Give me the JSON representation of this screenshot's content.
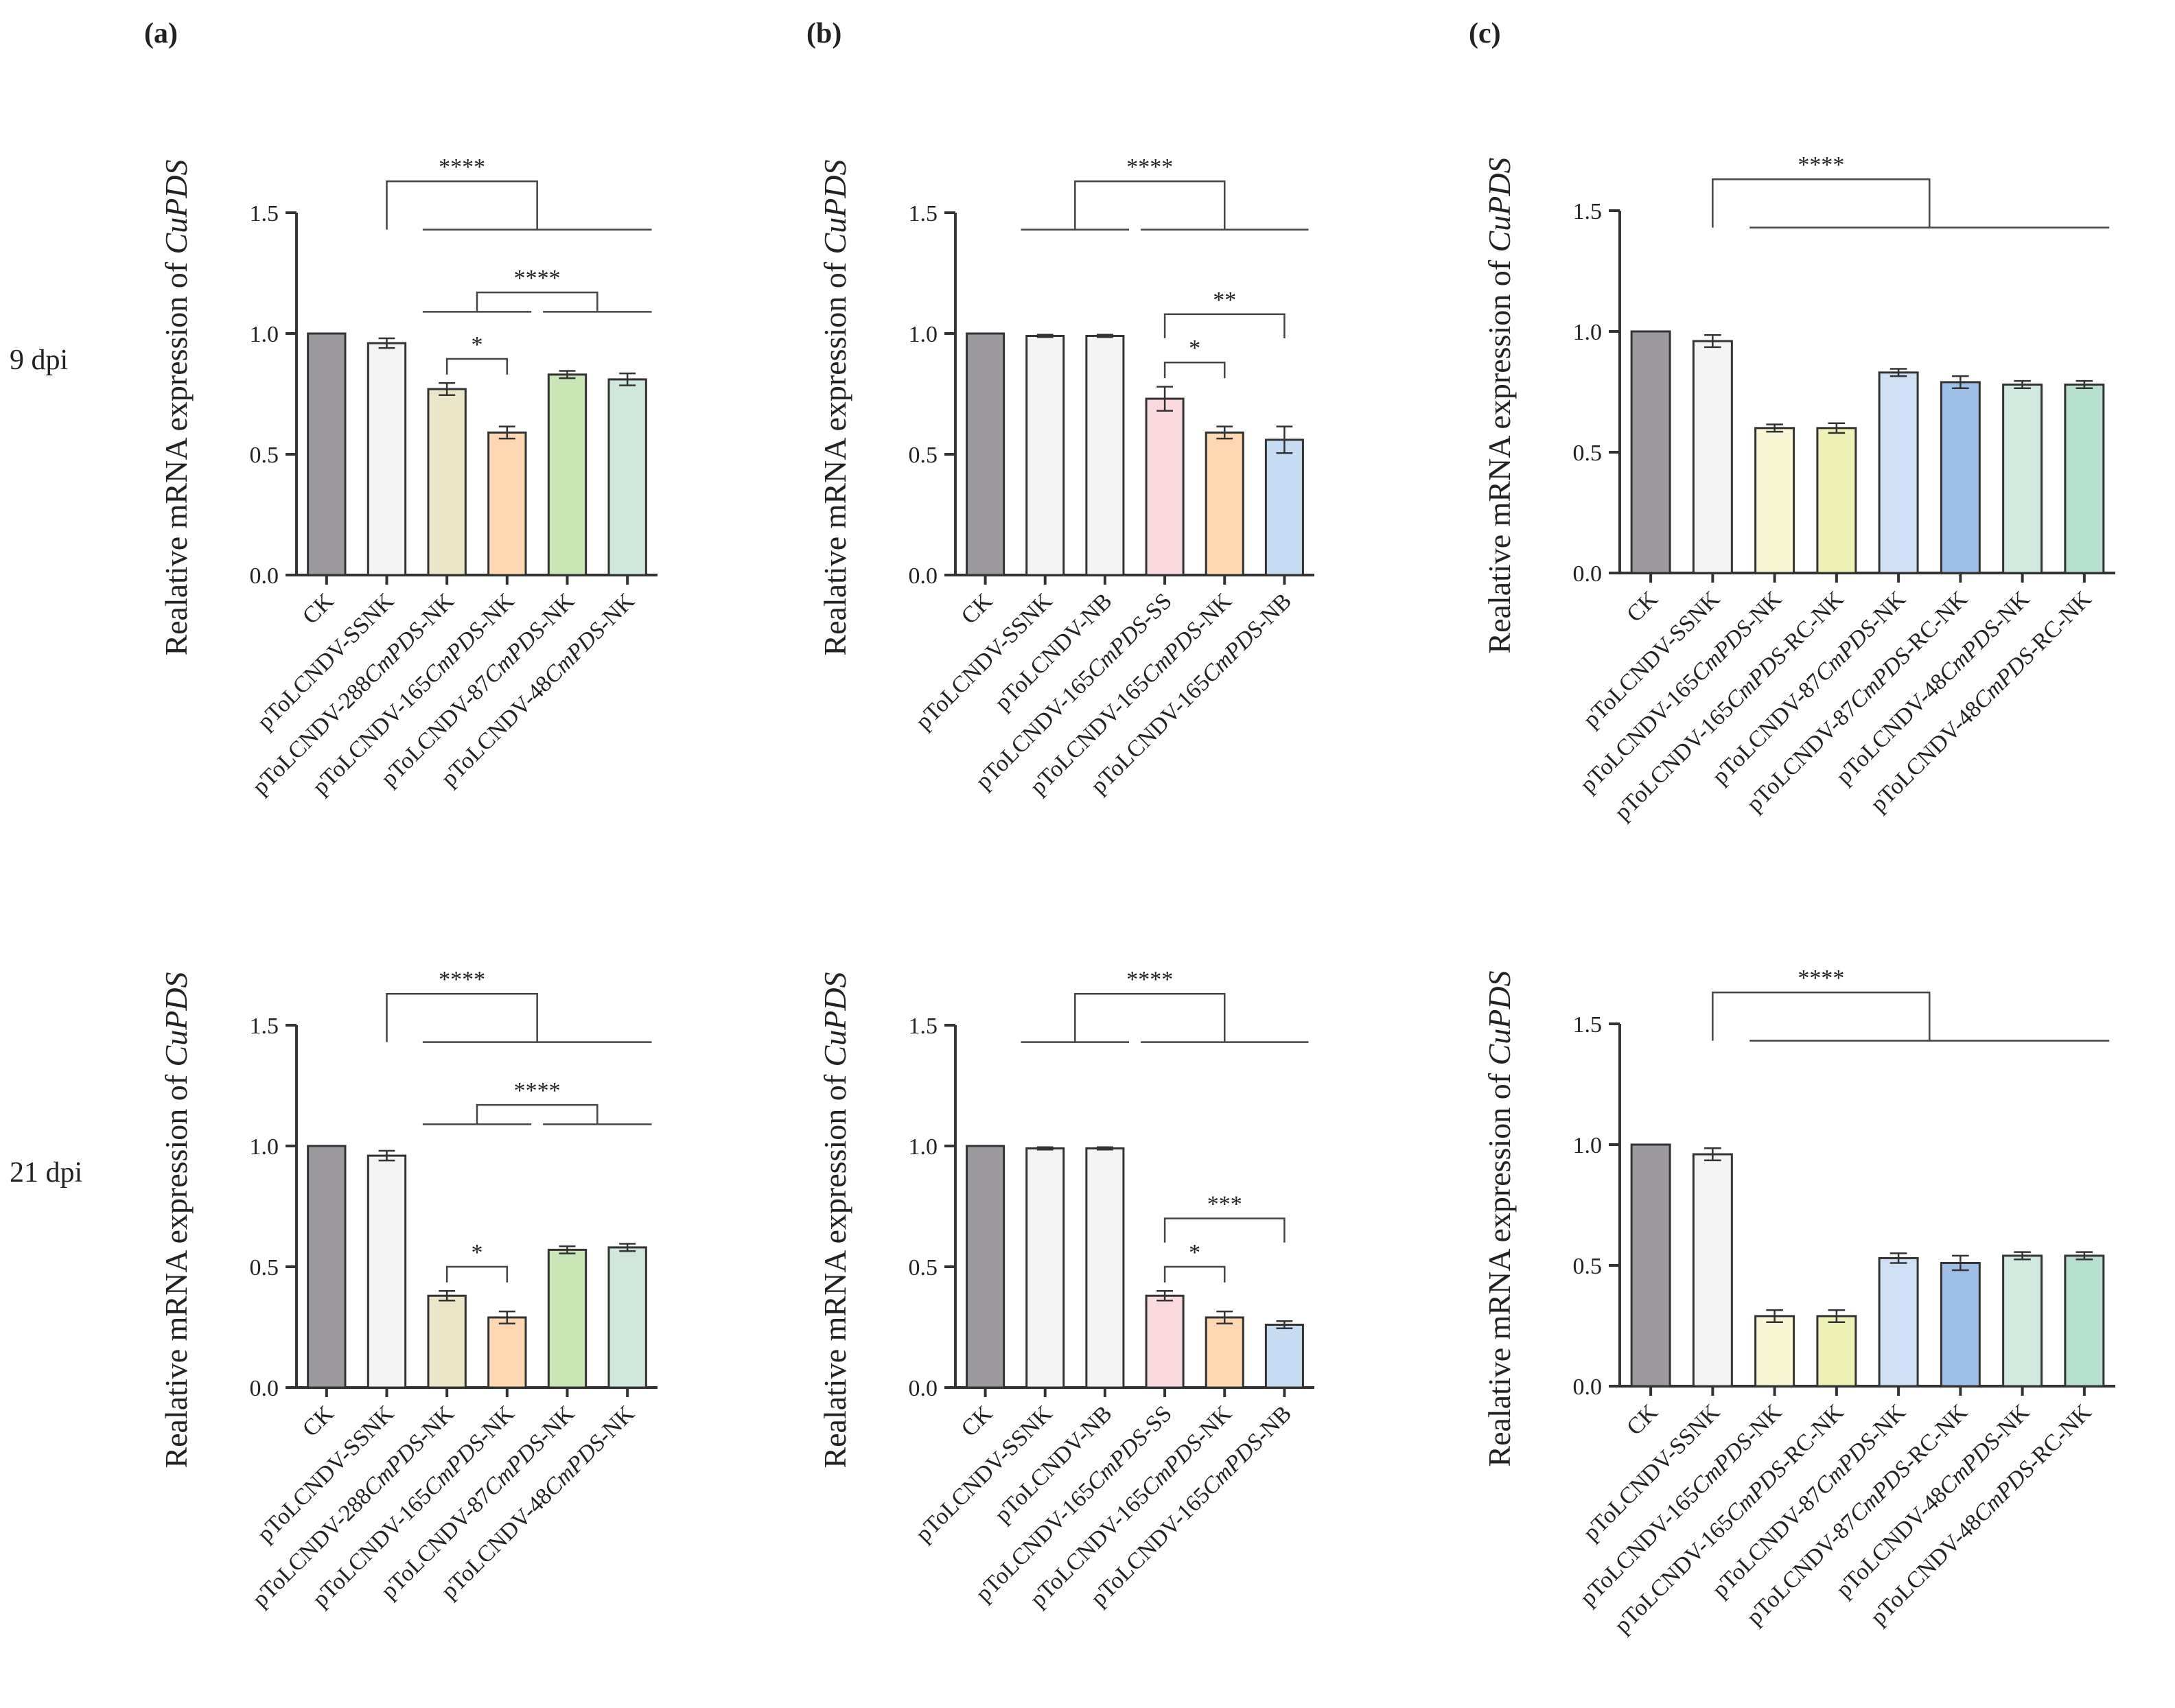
{
  "panel_labels": [
    "(a)",
    "(b)",
    "(c)"
  ],
  "row_labels": [
    "9 dpi",
    "21 dpi"
  ],
  "ylabel_prefix": "Realative mRNA expression of ",
  "ylabel_gene": "CuPDS",
  "yticks": [
    "0.0",
    "0.5",
    "1.0",
    "1.5"
  ],
  "chart_data": [
    {
      "id": "a-9dpi",
      "type": "bar",
      "panel": "(a)",
      "row": "9 dpi",
      "ylabel": "Realative mRNA expression of CuPDS",
      "ylim": [
        0,
        1.5
      ],
      "categories": [
        "CK",
        "pToLCNDV-SSNK",
        "pToLCNDV-288CmPDS-NK",
        "pToLCNDV-165CmPDS-NK",
        "pToLCNDV-87CmPDS-NK",
        "pToLCNDV-48CmPDS-NK"
      ],
      "values": [
        1.0,
        0.96,
        0.77,
        0.59,
        0.83,
        0.81
      ],
      "errors": [
        0.0,
        0.02,
        0.025,
        0.025,
        0.015,
        0.025
      ],
      "colors": [
        "#9c9a9f",
        "#f4f4f4",
        "#ece6c8",
        "#fdd8b3",
        "#c9e6b5",
        "#cfe8db"
      ],
      "significance": [
        {
          "label": "****",
          "kind": "group",
          "left": [
            1,
            1
          ],
          "right": [
            2,
            5
          ]
        },
        {
          "label": "****",
          "kind": "group",
          "left": [
            2,
            3
          ],
          "right": [
            4,
            5
          ]
        },
        {
          "label": "*",
          "kind": "pair",
          "left": [
            2,
            2
          ],
          "right": [
            3,
            3
          ]
        }
      ]
    },
    {
      "id": "b-9dpi",
      "type": "bar",
      "panel": "(b)",
      "row": "9 dpi",
      "ylabel": "Realative mRNA expression of CuPDS",
      "ylim": [
        0,
        1.5
      ],
      "categories": [
        "CK",
        "pToLCNDV-SSNK",
        "pToLCNDV-NB",
        "pToLCNDV-165CmPDS-SS",
        "pToLCNDV-165CmPDS-NK",
        "pToLCNDV-165CmPDS-NB"
      ],
      "values": [
        1.0,
        0.99,
        0.99,
        0.73,
        0.59,
        0.56
      ],
      "errors": [
        0.0,
        0.005,
        0.005,
        0.05,
        0.025,
        0.055
      ],
      "colors": [
        "#9c9a9f",
        "#f4f4f4",
        "#f4f4f4",
        "#fadadf",
        "#fdd8b3",
        "#c6dcf3"
      ],
      "significance": [
        {
          "label": "****",
          "kind": "group",
          "left": [
            1,
            2
          ],
          "right": [
            3,
            5
          ]
        },
        {
          "label": "**",
          "kind": "pair",
          "left": [
            3,
            3
          ],
          "right": [
            5,
            5
          ]
        },
        {
          "label": "*",
          "kind": "pair",
          "left": [
            3,
            3
          ],
          "right": [
            4,
            4
          ]
        }
      ]
    },
    {
      "id": "c-9dpi",
      "type": "bar",
      "panel": "(c)",
      "row": "9 dpi",
      "ylabel": "Realative mRNA expression of CuPDS",
      "ylim": [
        0,
        1.5
      ],
      "categories": [
        "CK",
        "pToLCNDV-SSNK",
        "pToLCNDV-165CmPDS-NK",
        "pToLCNDV-165CmPDS-RC-NK",
        "pToLCNDV-87CmPDS-NK",
        "pToLCNDV-87CmPDS-RC-NK",
        "pToLCNDV-48CmPDS-NK",
        "pToLCNDV-48CmPDS-RC-NK"
      ],
      "values": [
        1.0,
        0.96,
        0.6,
        0.6,
        0.83,
        0.79,
        0.78,
        0.78
      ],
      "errors": [
        0.0,
        0.025,
        0.015,
        0.02,
        0.015,
        0.025,
        0.015,
        0.015
      ],
      "colors": [
        "#9c9a9f",
        "#f4f4f4",
        "#f8f6d4",
        "#eef1b5",
        "#cfe0f5",
        "#9ebfe6",
        "#d2ebe0",
        "#b7e0cf"
      ],
      "significance": [
        {
          "label": "****",
          "kind": "group",
          "left": [
            1,
            1
          ],
          "right": [
            2,
            7
          ]
        }
      ]
    },
    {
      "id": "a-21dpi",
      "type": "bar",
      "panel": "(a)",
      "row": "21 dpi",
      "ylabel": "Realative mRNA expression of CuPDS",
      "ylim": [
        0,
        1.5
      ],
      "categories": [
        "CK",
        "pToLCNDV-SSNK",
        "pToLCNDV-288CmPDS-NK",
        "pToLCNDV-165CmPDS-NK",
        "pToLCNDV-87CmPDS-NK",
        "pToLCNDV-48CmPDS-NK"
      ],
      "values": [
        1.0,
        0.96,
        0.38,
        0.29,
        0.57,
        0.58
      ],
      "errors": [
        0.0,
        0.02,
        0.02,
        0.025,
        0.015,
        0.015
      ],
      "colors": [
        "#9c9a9f",
        "#f4f4f4",
        "#ece6c8",
        "#fdd8b3",
        "#c9e6b5",
        "#cfe8db"
      ],
      "significance": [
        {
          "label": "****",
          "kind": "group",
          "left": [
            1,
            1
          ],
          "right": [
            2,
            5
          ]
        },
        {
          "label": "****",
          "kind": "group",
          "left": [
            2,
            3
          ],
          "right": [
            4,
            5
          ]
        },
        {
          "label": "*",
          "kind": "pair",
          "left": [
            2,
            2
          ],
          "right": [
            3,
            3
          ]
        }
      ]
    },
    {
      "id": "b-21dpi",
      "type": "bar",
      "panel": "(b)",
      "row": "21 dpi",
      "ylabel": "Realative mRNA expression of CuPDS",
      "ylim": [
        0,
        1.5
      ],
      "categories": [
        "CK",
        "pToLCNDV-SSNK",
        "pToLCNDV-NB",
        "pToLCNDV-165CmPDS-SS",
        "pToLCNDV-165CmPDS-NK",
        "pToLCNDV-165CmPDS-NB"
      ],
      "values": [
        1.0,
        0.99,
        0.99,
        0.38,
        0.29,
        0.26
      ],
      "errors": [
        0.0,
        0.005,
        0.005,
        0.02,
        0.025,
        0.015
      ],
      "colors": [
        "#9c9a9f",
        "#f4f4f4",
        "#f4f4f4",
        "#fadadf",
        "#fdd8b3",
        "#c6dcf3"
      ],
      "significance": [
        {
          "label": "****",
          "kind": "group",
          "left": [
            1,
            2
          ],
          "right": [
            3,
            5
          ]
        },
        {
          "label": "***",
          "kind": "pair",
          "left": [
            3,
            3
          ],
          "right": [
            5,
            5
          ]
        },
        {
          "label": "*",
          "kind": "pair",
          "left": [
            3,
            3
          ],
          "right": [
            4,
            4
          ]
        }
      ]
    },
    {
      "id": "c-21dpi",
      "type": "bar",
      "panel": "(c)",
      "row": "21 dpi",
      "ylabel": "Realative mRNA expression of CuPDS",
      "ylim": [
        0,
        1.5
      ],
      "categories": [
        "CK",
        "pToLCNDV-SSNK",
        "pToLCNDV-165CmPDS-NK",
        "pToLCNDV-165CmPDS-RC-NK",
        "pToLCNDV-87CmPDS-NK",
        "pToLCNDV-87CmPDS-RC-NK",
        "pToLCNDV-48CmPDS-NK",
        "pToLCNDV-48CmPDS-RC-NK"
      ],
      "values": [
        1.0,
        0.96,
        0.29,
        0.29,
        0.53,
        0.51,
        0.54,
        0.54
      ],
      "errors": [
        0.0,
        0.025,
        0.025,
        0.025,
        0.02,
        0.03,
        0.015,
        0.015
      ],
      "colors": [
        "#9c9a9f",
        "#f4f4f4",
        "#f8f6d4",
        "#eef1b5",
        "#cfe0f5",
        "#9ebfe6",
        "#d2ebe0",
        "#b7e0cf"
      ],
      "significance": [
        {
          "label": "****",
          "kind": "group",
          "left": [
            1,
            1
          ],
          "right": [
            2,
            7
          ]
        }
      ]
    }
  ]
}
